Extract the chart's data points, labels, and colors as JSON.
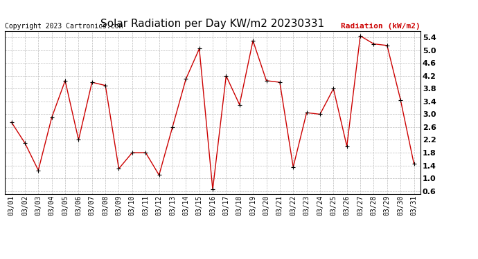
{
  "title": "Solar Radiation per Day KW/m2 20230331",
  "copyright": "Copyright 2023 Cartronics.com",
  "legend_label": "Radiation (kW/m2)",
  "dates": [
    "03/01",
    "03/02",
    "03/03",
    "03/04",
    "03/05",
    "03/06",
    "03/07",
    "03/08",
    "03/09",
    "03/10",
    "03/11",
    "03/12",
    "03/13",
    "03/14",
    "03/15",
    "03/16",
    "03/17",
    "03/18",
    "03/19",
    "03/20",
    "03/21",
    "03/22",
    "03/23",
    "03/24",
    "03/25",
    "03/26",
    "03/27",
    "03/28",
    "03/29",
    "03/30",
    "03/31"
  ],
  "values": [
    2.75,
    2.1,
    1.25,
    2.9,
    4.05,
    2.2,
    4.0,
    3.9,
    1.3,
    1.8,
    1.8,
    1.1,
    2.6,
    4.1,
    5.05,
    0.65,
    4.2,
    3.3,
    5.3,
    4.05,
    4.0,
    1.35,
    3.05,
    3.0,
    3.8,
    2.0,
    5.45,
    5.2,
    5.15,
    3.45,
    1.45
  ],
  "line_color": "#cc0000",
  "marker": "+",
  "marker_color": "#000000",
  "ylim": [
    0.5,
    5.6
  ],
  "yticks": [
    0.6,
    1.0,
    1.4,
    1.8,
    2.2,
    2.6,
    3.0,
    3.4,
    3.8,
    4.2,
    4.6,
    5.0,
    5.4
  ],
  "background_color": "#ffffff",
  "grid_color": "#bbbbbb",
  "title_fontsize": 11,
  "copyright_fontsize": 7,
  "legend_fontsize": 8,
  "tick_fontsize": 7,
  "ytick_fontsize": 8
}
